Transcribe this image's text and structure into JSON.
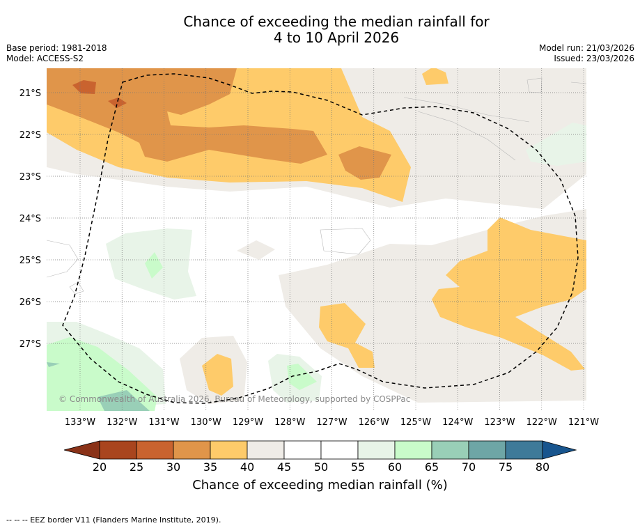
{
  "title": {
    "line1": "Chance of exceeding the median rainfall for",
    "line2": "4 to 10 April 2026"
  },
  "meta_left": {
    "base_period": "Base period: 1981-2018",
    "model": "Model: ACCESS-S2"
  },
  "meta_right": {
    "model_run": "Model run: 21/03/2026",
    "issued": "Issued: 23/03/2026"
  },
  "map": {
    "lat_labels": [
      "21°S",
      "22°S",
      "23°S",
      "24°S",
      "25°S",
      "26°S",
      "27°S"
    ],
    "lon_labels": [
      "133°W",
      "132°W",
      "131°W",
      "130°W",
      "129°W",
      "128°W",
      "127°W",
      "126°W",
      "125°W",
      "124°W",
      "123°W",
      "122°W",
      "121°W"
    ],
    "copyright": "© Commonwealth of Australia 2026, Bureau of Meteorology, supported by COSPPac"
  },
  "colorbar": {
    "ticks": [
      "20",
      "25",
      "30",
      "35",
      "40",
      "45",
      "50",
      "55",
      "60",
      "65",
      "70",
      "75",
      "80"
    ],
    "colors": [
      "#a9451e",
      "#c9632f",
      "#e0954a",
      "#fecb6a",
      "#efece7",
      "#ffffff",
      "#ffffff",
      "#e8f4e8",
      "#c9fbca",
      "#99cfb7",
      "#6ea6a6",
      "#3e7a99"
    ],
    "under_color": "#8a3218",
    "over_color": "#18558e",
    "label": "Chance of exceeding median rainfall (%)"
  },
  "colors": {
    "c25": "#c9632f",
    "c30": "#e0954a",
    "c35": "#fecb6a",
    "c40": "#efece7",
    "c55": "#e8f4e8",
    "c60": "#c9fbca",
    "c65": "#99cfb7"
  },
  "footer": "--  --  -- EEZ border V11 (Flanders Marine Institute, 2019)."
}
